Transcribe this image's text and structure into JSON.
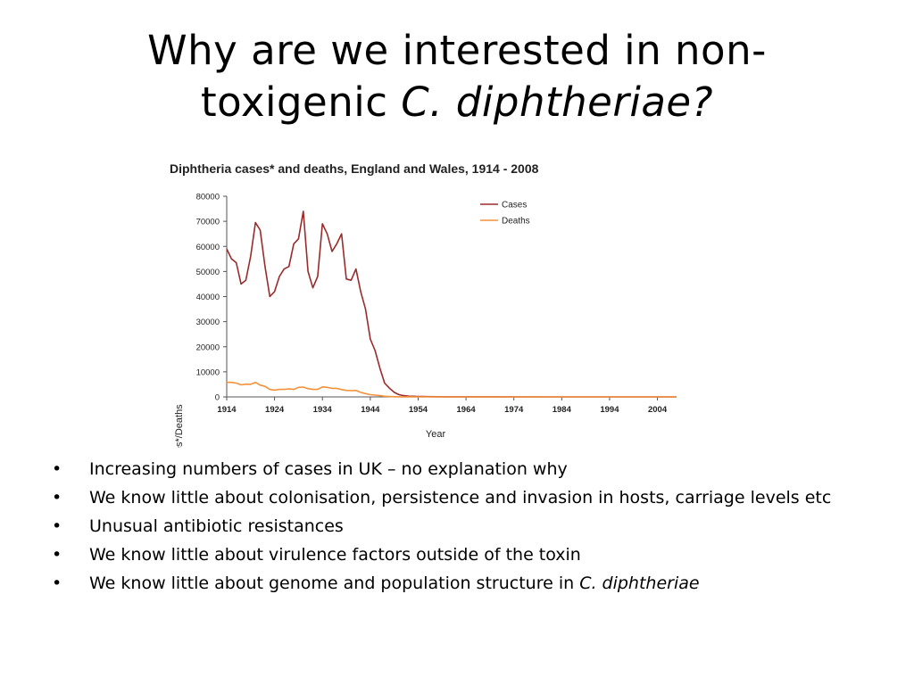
{
  "title": {
    "line1": "Why are we interested in non-",
    "line2_plain": "toxigenic ",
    "line2_italic": "C. diphtheriae?"
  },
  "chart_data": {
    "type": "line",
    "title": "Diphtheria cases* and deaths, England and Wales, 1914 - 2008",
    "xlabel": "Year",
    "ylabel": "Cases*/Deaths",
    "xlim": [
      1914,
      2008
    ],
    "ylim": [
      0,
      80000
    ],
    "xticks": [
      1914,
      1924,
      1934,
      1944,
      1954,
      1964,
      1974,
      1984,
      1994,
      2004
    ],
    "yticks": [
      0,
      10000,
      20000,
      30000,
      40000,
      50000,
      60000,
      70000,
      80000
    ],
    "legend_position": "top-right",
    "grid": false,
    "series": [
      {
        "name": "Cases",
        "color": "#9b2b2b",
        "points": [
          [
            1914,
            59000
          ],
          [
            1915,
            55000
          ],
          [
            1916,
            53500
          ],
          [
            1917,
            45000
          ],
          [
            1918,
            46500
          ],
          [
            1919,
            56000
          ],
          [
            1920,
            69500
          ],
          [
            1921,
            66500
          ],
          [
            1922,
            52000
          ],
          [
            1923,
            40000
          ],
          [
            1924,
            42000
          ],
          [
            1925,
            48000
          ],
          [
            1926,
            51000
          ],
          [
            1927,
            52000
          ],
          [
            1928,
            61000
          ],
          [
            1929,
            63000
          ],
          [
            1930,
            74000
          ],
          [
            1931,
            50000
          ],
          [
            1932,
            43500
          ],
          [
            1933,
            48000
          ],
          [
            1934,
            69000
          ],
          [
            1935,
            65000
          ],
          [
            1936,
            58000
          ],
          [
            1937,
            61000
          ],
          [
            1938,
            65000
          ],
          [
            1939,
            47000
          ],
          [
            1940,
            46500
          ],
          [
            1941,
            51000
          ],
          [
            1942,
            42000
          ],
          [
            1943,
            35000
          ],
          [
            1944,
            23000
          ],
          [
            1945,
            18500
          ],
          [
            1946,
            11500
          ],
          [
            1947,
            5500
          ],
          [
            1948,
            3500
          ],
          [
            1949,
            1800
          ],
          [
            1950,
            900
          ],
          [
            1951,
            500
          ],
          [
            1952,
            300
          ],
          [
            1953,
            250
          ],
          [
            1954,
            180
          ],
          [
            1955,
            150
          ],
          [
            1956,
            100
          ],
          [
            1958,
            60
          ],
          [
            1960,
            40
          ],
          [
            1970,
            20
          ],
          [
            1980,
            10
          ],
          [
            1990,
            10
          ],
          [
            2000,
            10
          ],
          [
            2008,
            10
          ]
        ]
      },
      {
        "name": "Deaths",
        "color": "#f4913b",
        "points": [
          [
            1914,
            5800
          ],
          [
            1915,
            5800
          ],
          [
            1916,
            5500
          ],
          [
            1917,
            4800
          ],
          [
            1918,
            5100
          ],
          [
            1919,
            5000
          ],
          [
            1920,
            5800
          ],
          [
            1921,
            4700
          ],
          [
            1922,
            4200
          ],
          [
            1923,
            3000
          ],
          [
            1924,
            2700
          ],
          [
            1925,
            3000
          ],
          [
            1926,
            3000
          ],
          [
            1927,
            3200
          ],
          [
            1928,
            3000
          ],
          [
            1929,
            3800
          ],
          [
            1930,
            3900
          ],
          [
            1931,
            3300
          ],
          [
            1932,
            3000
          ],
          [
            1933,
            3000
          ],
          [
            1934,
            4000
          ],
          [
            1935,
            3800
          ],
          [
            1936,
            3400
          ],
          [
            1937,
            3400
          ],
          [
            1938,
            2900
          ],
          [
            1939,
            2600
          ],
          [
            1940,
            2500
          ],
          [
            1941,
            2600
          ],
          [
            1942,
            1800
          ],
          [
            1943,
            1300
          ],
          [
            1944,
            900
          ],
          [
            1945,
            700
          ],
          [
            1946,
            500
          ],
          [
            1947,
            250
          ],
          [
            1948,
            150
          ],
          [
            1949,
            80
          ],
          [
            1950,
            50
          ],
          [
            1960,
            10
          ],
          [
            1980,
            5
          ],
          [
            2008,
            5
          ]
        ]
      }
    ]
  },
  "bullets": [
    {
      "text": "Increasing numbers of cases in UK – no explanation why"
    },
    {
      "text": "We know little about colonisation, persistence and invasion in hosts, carriage levels etc"
    },
    {
      "text": "Unusual antibiotic resistances"
    },
    {
      "text": "We know little about virulence factors outside of the toxin"
    },
    {
      "text": "We know little about genome and population structure in ",
      "italic": "C. diphtheriae"
    }
  ],
  "bullet_char": "•"
}
